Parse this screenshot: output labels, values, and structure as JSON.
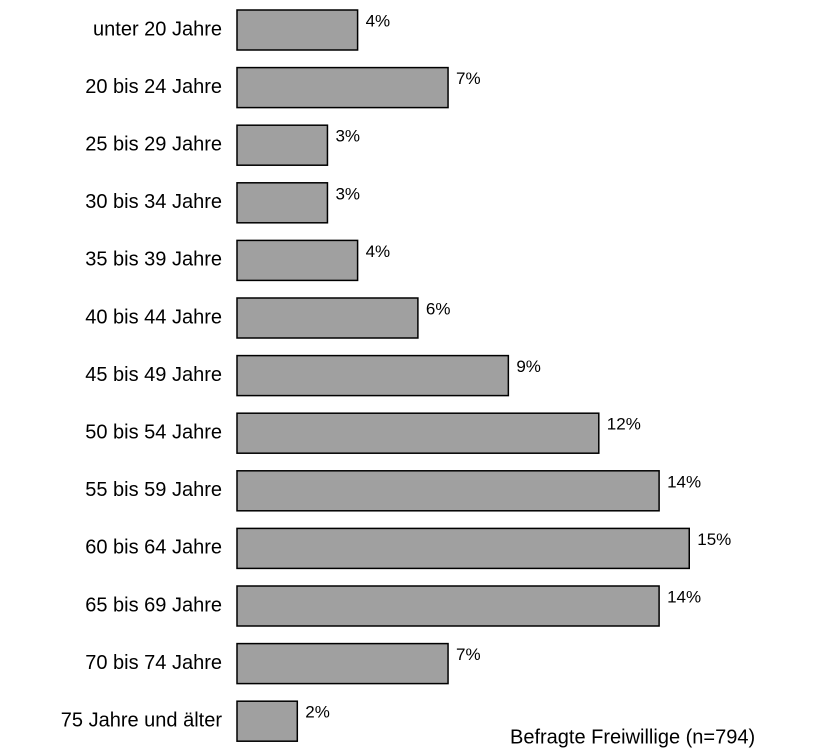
{
  "chart_data": {
    "type": "bar",
    "orientation": "horizontal",
    "categories": [
      "unter 20 Jahre",
      "20 bis 24 Jahre",
      "25 bis 29 Jahre",
      "30 bis 34 Jahre",
      "35 bis 39 Jahre",
      "40 bis 44 Jahre",
      "45 bis 49 Jahre",
      "50 bis 54 Jahre",
      "55 bis 59 Jahre",
      "60 bis 64 Jahre",
      "65 bis 69 Jahre",
      "70 bis 74 Jahre",
      "75 Jahre und älter"
    ],
    "values": [
      4,
      7,
      3,
      3,
      4,
      6,
      9,
      12,
      14,
      15,
      14,
      7,
      2
    ],
    "value_labels": [
      "4%",
      "7%",
      "3%",
      "3%",
      "4%",
      "6%",
      "9%",
      "12%",
      "14%",
      "15%",
      "14%",
      "7%",
      "2%"
    ],
    "color": "#a0a0a0",
    "annotation": "Befragte Freiwillige (n=794)"
  }
}
